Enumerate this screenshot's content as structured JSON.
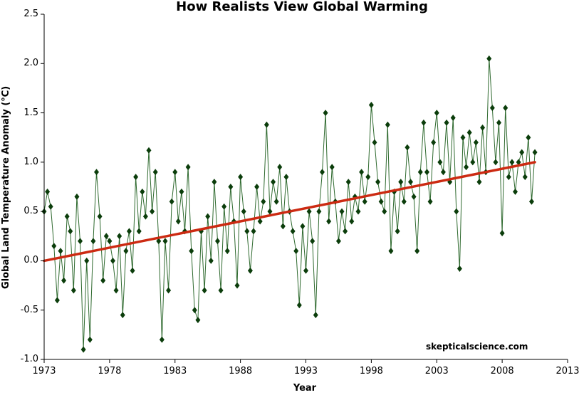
{
  "chart_data": {
    "type": "line",
    "title": "How Realists View Global Warming",
    "xlabel": "Year",
    "ylabel": "Global Land Temperature Anomaly (°C)",
    "watermark": "skepticalscience.com",
    "xlim": [
      1973,
      2013
    ],
    "ylim": [
      -1.0,
      2.5
    ],
    "xticks": [
      "1973",
      "1978",
      "1983",
      "1988",
      "1993",
      "1998",
      "2003",
      "2008",
      "2013"
    ],
    "yticks": [
      "-1.0",
      "-0.5",
      "0.0",
      "0.5",
      "1.0",
      "1.5",
      "2.0",
      "2.5"
    ],
    "grid": false,
    "colors": {
      "series": "#0b3d0b",
      "line": "#2f6a2f",
      "trend": "#cc2a12"
    },
    "series": [
      {
        "marker": "diamond",
        "x": [
          1973.0,
          1973.25,
          1973.5,
          1973.75,
          1974.0,
          1974.25,
          1974.5,
          1974.75,
          1975.0,
          1975.25,
          1975.5,
          1975.75,
          1976.0,
          1976.25,
          1976.5,
          1976.75,
          1977.0,
          1977.25,
          1977.5,
          1977.75,
          1978.0,
          1978.25,
          1978.5,
          1978.75,
          1979.0,
          1979.25,
          1979.5,
          1979.75,
          1980.0,
          1980.25,
          1980.5,
          1980.75,
          1981.0,
          1981.25,
          1981.5,
          1981.75,
          1982.0,
          1982.25,
          1982.5,
          1982.75,
          1983.0,
          1983.25,
          1983.5,
          1983.75,
          1984.0,
          1984.25,
          1984.5,
          1984.75,
          1985.0,
          1985.25,
          1985.5,
          1985.75,
          1986.0,
          1986.25,
          1986.5,
          1986.75,
          1987.0,
          1987.25,
          1987.5,
          1987.75,
          1988.0,
          1988.25,
          1988.5,
          1988.75,
          1989.0,
          1989.25,
          1989.5,
          1989.75,
          1990.0,
          1990.25,
          1990.5,
          1990.75,
          1991.0,
          1991.25,
          1991.5,
          1991.75,
          1992.0,
          1992.25,
          1992.5,
          1992.75,
          1993.0,
          1993.25,
          1993.5,
          1993.75,
          1994.0,
          1994.25,
          1994.5,
          1994.75,
          1995.0,
          1995.25,
          1995.5,
          1995.75,
          1996.0,
          1996.25,
          1996.5,
          1996.75,
          1997.0,
          1997.25,
          1997.5,
          1997.75,
          1998.0,
          1998.25,
          1998.5,
          1998.75,
          1999.0,
          1999.25,
          1999.5,
          1999.75,
          2000.0,
          2000.25,
          2000.5,
          2000.75,
          2001.0,
          2001.25,
          2001.5,
          2001.75,
          2002.0,
          2002.25,
          2002.5,
          2002.75,
          2003.0,
          2003.25,
          2003.5,
          2003.75,
          2004.0,
          2004.25,
          2004.5,
          2004.75,
          2005.0,
          2005.25,
          2005.5,
          2005.75,
          2006.0,
          2006.25,
          2006.5,
          2006.75,
          2007.0,
          2007.25,
          2007.5,
          2007.75,
          2008.0,
          2008.25,
          2008.5,
          2008.75,
          2009.0,
          2009.25,
          2009.5,
          2009.75,
          2010.0,
          2010.25,
          2010.5
        ],
        "values": [
          0.5,
          0.7,
          0.55,
          0.15,
          -0.4,
          0.1,
          -0.2,
          0.45,
          0.3,
          -0.3,
          0.65,
          0.2,
          -0.9,
          0.0,
          -0.8,
          0.2,
          0.9,
          0.45,
          -0.2,
          0.25,
          0.2,
          0.0,
          -0.3,
          0.25,
          -0.55,
          0.1,
          0.3,
          -0.1,
          0.85,
          0.3,
          0.7,
          0.45,
          1.12,
          0.5,
          0.9,
          0.2,
          -0.8,
          0.2,
          -0.3,
          0.6,
          0.9,
          0.4,
          0.7,
          0.3,
          0.95,
          0.1,
          -0.5,
          -0.6,
          0.3,
          -0.3,
          0.45,
          0.0,
          0.8,
          0.2,
          -0.3,
          0.55,
          0.1,
          0.75,
          0.4,
          -0.25,
          0.85,
          0.5,
          0.3,
          -0.1,
          0.3,
          0.75,
          0.4,
          0.6,
          1.38,
          0.5,
          0.8,
          0.6,
          0.95,
          0.35,
          0.85,
          0.5,
          0.3,
          0.1,
          -0.45,
          0.35,
          -0.1,
          0.5,
          0.2,
          -0.55,
          0.5,
          0.9,
          1.5,
          0.4,
          0.95,
          0.6,
          0.2,
          0.5,
          0.3,
          0.8,
          0.4,
          0.65,
          0.5,
          0.9,
          0.6,
          0.85,
          1.58,
          1.2,
          0.8,
          0.6,
          0.5,
          1.38,
          0.1,
          0.7,
          0.3,
          0.8,
          0.6,
          1.15,
          0.8,
          0.65,
          0.1,
          0.9,
          1.4,
          0.9,
          0.6,
          1.2,
          1.5,
          1.0,
          0.9,
          1.4,
          0.8,
          1.45,
          0.5,
          -0.08,
          1.25,
          0.95,
          1.3,
          1.0,
          1.2,
          0.8,
          1.35,
          0.9,
          2.05,
          1.55,
          1.0,
          1.4,
          0.28,
          1.55,
          0.85,
          1.0,
          0.7,
          1.0,
          1.1,
          0.85,
          1.25,
          0.6,
          1.1
        ]
      }
    ],
    "trend": {
      "x": [
        1973,
        2010.5
      ],
      "y": [
        0.0,
        1.0
      ]
    }
  }
}
